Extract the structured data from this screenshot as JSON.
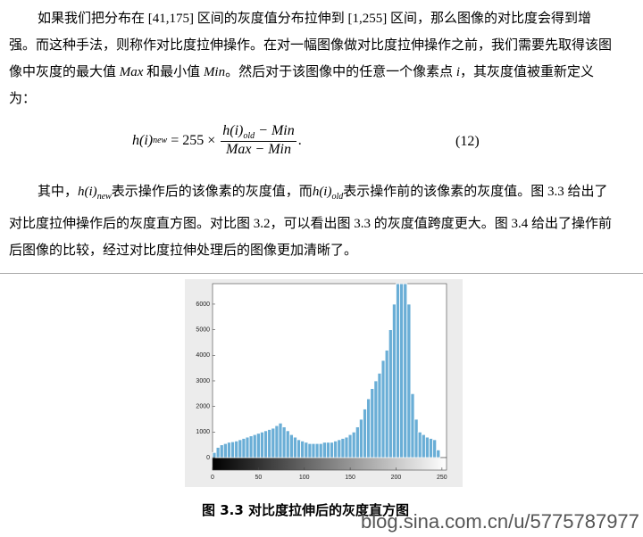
{
  "paragraphs": [
    [
      "如果我们把分布在 [41,175] 区间的灰度值分布拉伸到 [1,255] 区间，那么图像的对比度会得到增强。而这种手法，则称作对比度拉伸操作。在对一幅图像做对比度拉伸操作之前，我们需要先取得该图像中灰度的最大值 ",
      "Max",
      " 和最小值 ",
      "Min",
      "。然后对于该图像中的任意一个像素点 ",
      "i",
      "，其灰度值被重新定义为："
    ],
    [
      "其中，",
      "h(i)",
      "new",
      "表示操作后的该像素的灰度值，而",
      "h(i)",
      "old",
      "表示操作前的该像素的灰度值。图 3.3 给出了对比度拉伸操作后的灰度直方图。对比图 3.2，可以看出图 3.3 的灰度值跨度更大。图 3.4 给出了操作前后图像的比较，经过对比度拉伸处理后的图像更加清晰了。"
    ]
  ],
  "formula": {
    "lhs": "h(i)",
    "lhs_sub": "new",
    "equals": "= 255 ×",
    "num": "h(i)",
    "num_sub": "old",
    "num_rest": " − Min",
    "den": "Max − Min",
    "end": ".",
    "number": "(12)"
  },
  "chart_data": {
    "type": "histogram",
    "color": "#6aaed6",
    "bins": [
      0,
      4,
      8,
      12,
      16,
      20,
      24,
      28,
      32,
      36,
      40,
      44,
      48,
      52,
      56,
      60,
      64,
      68,
      72,
      76,
      80,
      84,
      88,
      92,
      96,
      100,
      104,
      108,
      112,
      116,
      120,
      124,
      128,
      132,
      136,
      140,
      144,
      148,
      152,
      156,
      160,
      164,
      168,
      172,
      176,
      180,
      184,
      188,
      192,
      196,
      200,
      204,
      208,
      212,
      216,
      220,
      224,
      228,
      232,
      236,
      240,
      244,
      248,
      252,
      256
    ],
    "counts": [
      200,
      400,
      500,
      550,
      600,
      620,
      650,
      700,
      750,
      800,
      850,
      900,
      950,
      1000,
      1050,
      1100,
      1150,
      1250,
      1350,
      1200,
      1050,
      900,
      800,
      700,
      650,
      600,
      550,
      550,
      550,
      550,
      600,
      600,
      600,
      650,
      700,
      750,
      800,
      900,
      1000,
      1200,
      1500,
      1900,
      2300,
      2700,
      3000,
      3300,
      3800,
      4200,
      5000,
      6000,
      6800,
      6800,
      6800,
      6000,
      2500,
      1500,
      1000,
      900,
      800,
      750,
      700,
      300,
      0,
      0
    ],
    "xlim": [
      0,
      255
    ],
    "ylim": [
      0,
      6800
    ],
    "xticks": [
      0,
      50,
      100,
      150,
      200,
      250
    ],
    "yticks": [
      0,
      1000,
      2000,
      3000,
      4000,
      5000,
      6000
    ]
  },
  "caption": "图 3.3  对比度拉伸后的灰度直方图",
  "watermark": "blog.sina.com.cn/u/5775787977"
}
